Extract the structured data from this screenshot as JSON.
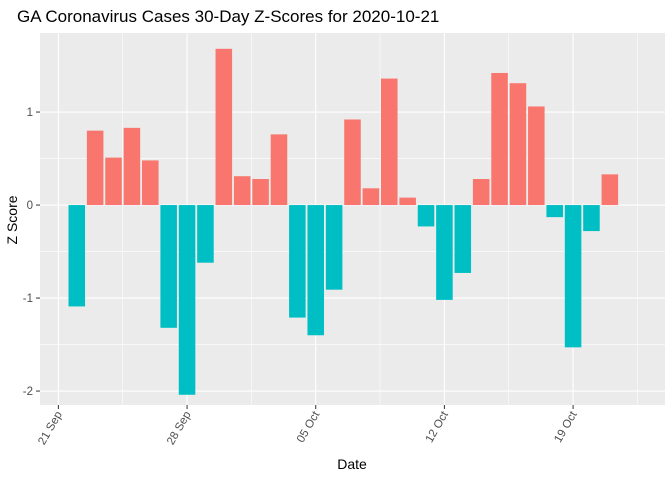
{
  "chart_data": {
    "type": "bar",
    "title": "GA Coronavirus Cases 30-Day Z-Scores for 2020-10-21",
    "xlabel": "Date",
    "ylabel": "Z Score",
    "x_ticks": [
      {
        "date": "2020-09-21",
        "label": "21 Sep"
      },
      {
        "date": "2020-09-28",
        "label": "28 Sep"
      },
      {
        "date": "2020-10-05",
        "label": "05 Oct"
      },
      {
        "date": "2020-10-12",
        "label": "12 Oct"
      },
      {
        "date": "2020-10-19",
        "label": "19 Oct"
      }
    ],
    "y_ticks": [
      -2,
      -1,
      0,
      1
    ],
    "ylim": [
      -2.15,
      1.85
    ],
    "xlim": [
      "2020-09-20",
      "2020-10-24"
    ],
    "grid": true,
    "legend": "none",
    "colors": {
      "positive": "#F8766D",
      "negative": "#00BFC4",
      "panel": "#EBEBEB",
      "grid": "#FFFFFF"
    },
    "points": [
      {
        "date": "2020-09-22",
        "value": -1.09
      },
      {
        "date": "2020-09-23",
        "value": 0.8
      },
      {
        "date": "2020-09-24",
        "value": 0.51
      },
      {
        "date": "2020-09-25",
        "value": 0.83
      },
      {
        "date": "2020-09-26",
        "value": 0.48
      },
      {
        "date": "2020-09-27",
        "value": -1.32
      },
      {
        "date": "2020-09-28",
        "value": -2.04
      },
      {
        "date": "2020-09-29",
        "value": -0.62
      },
      {
        "date": "2020-09-30",
        "value": 1.68
      },
      {
        "date": "2020-10-01",
        "value": 0.31
      },
      {
        "date": "2020-10-02",
        "value": 0.28
      },
      {
        "date": "2020-10-03",
        "value": 0.76
      },
      {
        "date": "2020-10-04",
        "value": -1.21
      },
      {
        "date": "2020-10-05",
        "value": -1.4
      },
      {
        "date": "2020-10-06",
        "value": -0.91
      },
      {
        "date": "2020-10-07",
        "value": 0.92
      },
      {
        "date": "2020-10-08",
        "value": 0.18
      },
      {
        "date": "2020-10-09",
        "value": 1.36
      },
      {
        "date": "2020-10-10",
        "value": 0.08
      },
      {
        "date": "2020-10-11",
        "value": -0.23
      },
      {
        "date": "2020-10-12",
        "value": -1.02
      },
      {
        "date": "2020-10-13",
        "value": -0.73
      },
      {
        "date": "2020-10-14",
        "value": 0.28
      },
      {
        "date": "2020-10-15",
        "value": 1.42
      },
      {
        "date": "2020-10-16",
        "value": 1.31
      },
      {
        "date": "2020-10-17",
        "value": 1.06
      },
      {
        "date": "2020-10-18",
        "value": -0.13
      },
      {
        "date": "2020-10-19",
        "value": -1.53
      },
      {
        "date": "2020-10-20",
        "value": -0.28
      },
      {
        "date": "2020-10-21",
        "value": 0.33
      }
    ]
  }
}
